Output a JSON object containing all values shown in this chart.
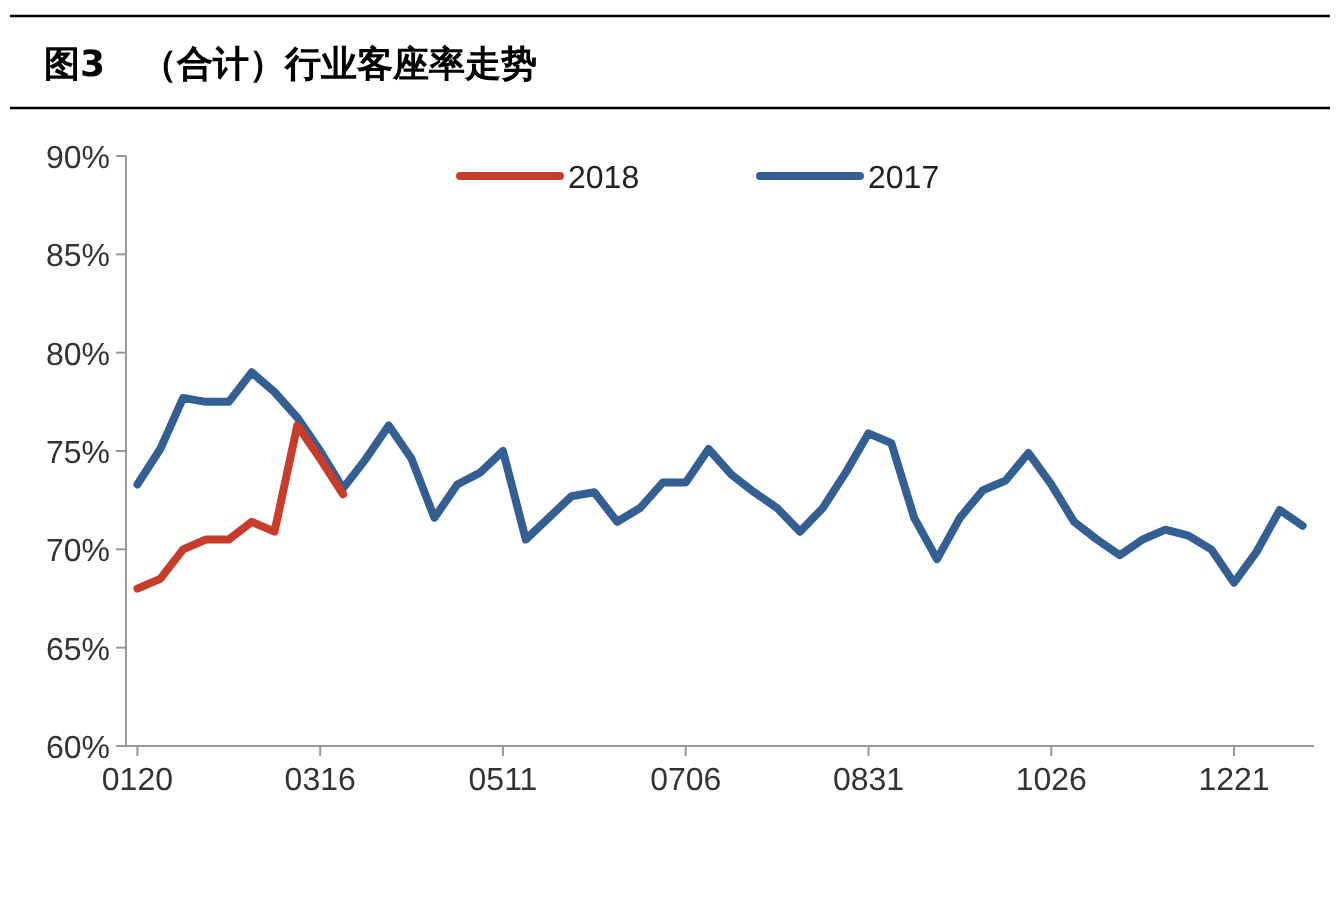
{
  "chart_data": {
    "type": "line",
    "title": "图3　（合计）行业客座率走势",
    "categories": [
      "0120",
      null,
      null,
      null,
      null,
      null,
      null,
      null,
      "0316",
      null,
      null,
      null,
      null,
      null,
      null,
      null,
      "0511",
      null,
      null,
      null,
      null,
      null,
      null,
      null,
      "0706",
      null,
      null,
      null,
      null,
      null,
      null,
      null,
      "0831",
      null,
      null,
      null,
      null,
      null,
      null,
      null,
      "1026",
      null,
      null,
      null,
      null,
      null,
      null,
      null,
      "1221",
      null,
      null,
      null
    ],
    "series": [
      {
        "name": "2018",
        "color": "#c83c2c",
        "values": [
          68.0,
          68.5,
          70.0,
          70.5,
          70.5,
          71.4,
          70.9,
          76.3,
          74.6,
          72.8,
          null,
          null,
          null,
          null,
          null,
          null,
          null,
          null,
          null,
          null,
          null,
          null,
          null,
          null,
          null,
          null,
          null,
          null,
          null,
          null,
          null,
          null,
          null,
          null,
          null,
          null,
          null,
          null,
          null,
          null,
          null,
          null,
          null,
          null,
          null,
          null,
          null,
          null,
          null,
          null,
          null,
          null
        ]
      },
      {
        "name": "2017",
        "color": "#335f92",
        "values": [
          73.3,
          75.1,
          77.7,
          77.5,
          77.5,
          79.0,
          78.0,
          76.7,
          75.0,
          73.1,
          74.6,
          76.3,
          74.6,
          71.6,
          73.3,
          73.9,
          75.0,
          70.5,
          71.6,
          72.7,
          72.9,
          71.4,
          72.1,
          73.4,
          73.4,
          75.1,
          73.8,
          72.9,
          72.1,
          70.9,
          72.1,
          73.9,
          75.9,
          75.4,
          71.6,
          69.5,
          71.6,
          73.0,
          73.5,
          74.9,
          73.3,
          71.4,
          70.5,
          69.7,
          70.5,
          71.0,
          70.7,
          70.0,
          68.3,
          69.9,
          72.0,
          71.2
        ]
      }
    ],
    "ylim": [
      60,
      90
    ],
    "yticks": [
      {
        "value": 60,
        "label": "60%"
      },
      {
        "value": 65,
        "label": "65%"
      },
      {
        "value": 70,
        "label": "70%"
      },
      {
        "value": 75,
        "label": "75%"
      },
      {
        "value": 80,
        "label": "80%"
      },
      {
        "value": 85,
        "label": "85%"
      },
      {
        "value": 90,
        "label": "90%"
      }
    ],
    "legend": "top"
  }
}
